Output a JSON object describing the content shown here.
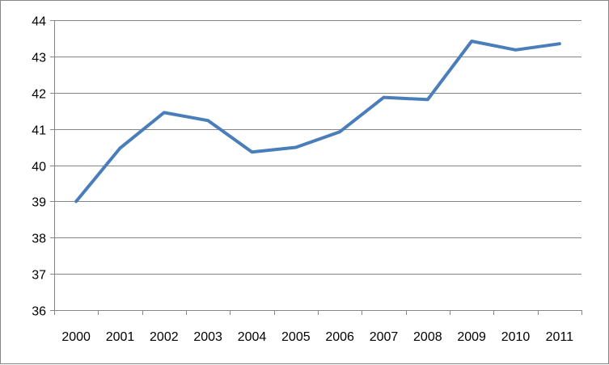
{
  "chart_data": {
    "type": "line",
    "categories": [
      "2000",
      "2001",
      "2002",
      "2003",
      "2004",
      "2005",
      "2006",
      "2007",
      "2008",
      "2009",
      "2010",
      "2011"
    ],
    "series": [
      {
        "values": [
          39.0,
          40.47,
          41.45,
          41.23,
          40.36,
          40.49,
          40.92,
          41.87,
          41.81,
          43.42,
          43.18,
          43.35
        ],
        "color": "#4A7EBB"
      }
    ],
    "ylim": [
      36,
      44
    ],
    "yticks": [
      36,
      37,
      38,
      39,
      40,
      41,
      42,
      43,
      44
    ],
    "grid": true,
    "legend": "none",
    "colors": {
      "gridline": "#868686",
      "axis": "#868686",
      "line": "#4A7EBB"
    }
  }
}
